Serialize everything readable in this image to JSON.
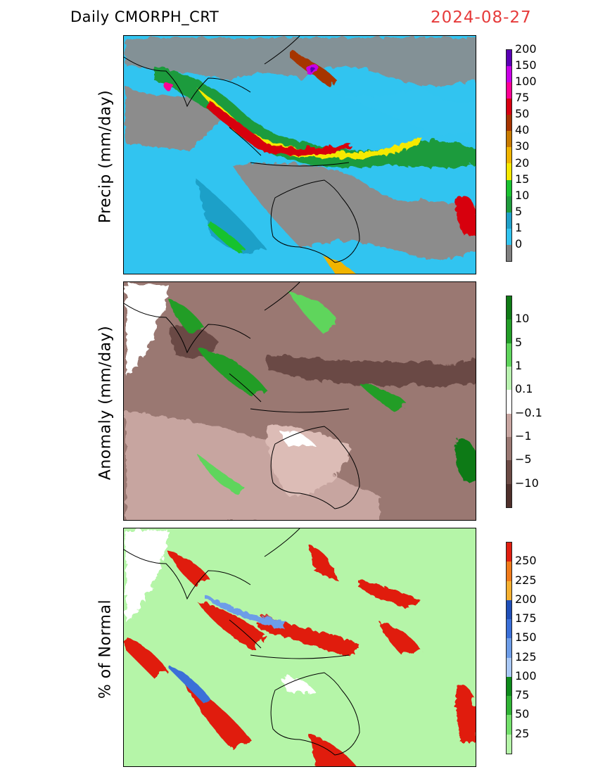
{
  "header": {
    "product": "Daily  CMORPH_CRT",
    "date": "2024-08-27"
  },
  "panels": [
    {
      "id": "precip",
      "ylabel": "Precip (mm/day)",
      "colorbar": {
        "colors": [
          "#7f7f7f",
          "#31c4f0",
          "#1fa0c8",
          "#1e9b3c",
          "#19c22f",
          "#f5e900",
          "#f0b400",
          "#c87a00",
          "#a63400",
          "#d70011",
          "#ff0093",
          "#c800e6",
          "#5a00b4"
        ],
        "labels": [
          "0",
          "1",
          "5",
          "10",
          "15",
          "20",
          "30",
          "40",
          "50",
          "75",
          "100",
          "150",
          "200"
        ]
      }
    },
    {
      "id": "anomaly",
      "ylabel": "Anomaly (mm/day)",
      "colorbar": {
        "colors": [
          "#4e2f2b",
          "#6b4a44",
          "#9a7872",
          "#c7a5a0",
          "#ffffff",
          "#b9f2b0",
          "#5fd55b",
          "#229d27",
          "#0f7a16"
        ],
        "labels": [
          "−10",
          "−5",
          "−1",
          "−0.1",
          "0.1",
          "1",
          "5",
          "10"
        ]
      }
    },
    {
      "id": "pct",
      "ylabel": "% of Normal",
      "colorbar": {
        "colors": [
          "#b5f5a8",
          "#73e06b",
          "#2fb334",
          "#0d8a1a",
          "#a9c8f5",
          "#6d9de8",
          "#3a6fd8",
          "#1f4fb8",
          "#f5b030",
          "#f07a1a",
          "#e01e10"
        ],
        "labels": [
          "25",
          "50",
          "75",
          "100",
          "125",
          "150",
          "175",
          "200",
          "225",
          "250"
        ]
      }
    }
  ]
}
